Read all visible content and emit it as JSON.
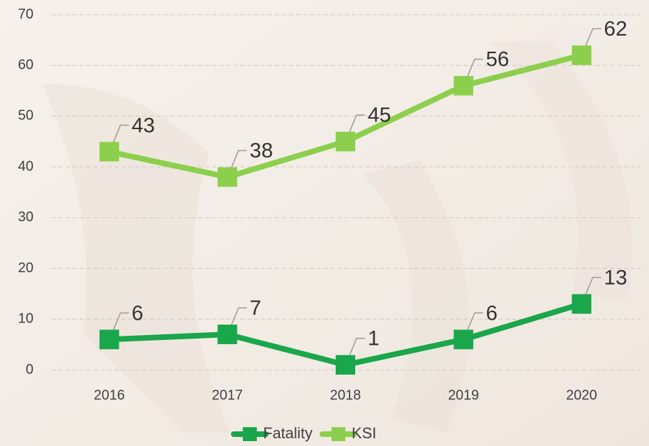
{
  "chart_data": {
    "type": "line",
    "categories": [
      "2016",
      "2017",
      "2018",
      "2019",
      "2020"
    ],
    "series": [
      {
        "name": "Fatality",
        "color": "#1aa64a",
        "values": [
          6,
          7,
          1,
          6,
          13
        ]
      },
      {
        "name": "KSI",
        "color": "#8ccf4d",
        "values": [
          43,
          38,
          45,
          56,
          62
        ]
      }
    ],
    "ylim": [
      0,
      70
    ],
    "yticks": [
      0,
      10,
      20,
      30,
      40,
      50,
      60,
      70
    ],
    "grid": true,
    "legend": "bottom"
  }
}
